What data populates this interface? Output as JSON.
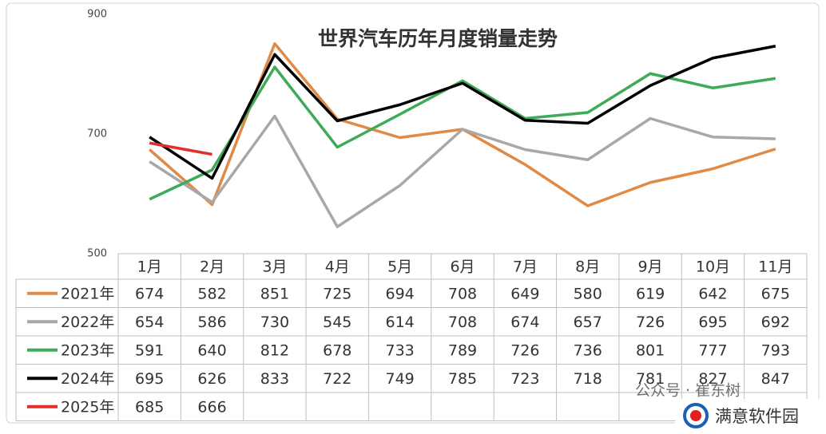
{
  "chart_data": {
    "type": "line",
    "title": "世界汽车历年月度销量走势",
    "categories": [
      "1月",
      "2月",
      "3月",
      "4月",
      "5月",
      "6月",
      "7月",
      "8月",
      "9月",
      "10月",
      "11月"
    ],
    "series": [
      {
        "name": "2021年",
        "color": "#e08a45",
        "values": [
          674,
          582,
          851,
          725,
          694,
          708,
          649,
          580,
          619,
          642,
          675
        ]
      },
      {
        "name": "2022年",
        "color": "#a8a8a8",
        "values": [
          654,
          586,
          730,
          545,
          614,
          708,
          674,
          657,
          726,
          695,
          692
        ]
      },
      {
        "name": "2023年",
        "color": "#3dab57",
        "values": [
          591,
          640,
          812,
          678,
          733,
          789,
          726,
          736,
          801,
          777,
          793
        ]
      },
      {
        "name": "2024年",
        "color": "#000000",
        "values": [
          695,
          626,
          833,
          722,
          749,
          785,
          723,
          718,
          781,
          827,
          847
        ]
      },
      {
        "name": "2025年",
        "color": "#e0302b",
        "values": [
          685,
          666,
          null,
          null,
          null,
          null,
          null,
          null,
          null,
          null,
          null
        ]
      }
    ],
    "ylim": [
      500,
      900
    ],
    "yticks": [
      500,
      700,
      900
    ],
    "watermark": [
      "公众号 · 崔东树",
      "满意软件园"
    ]
  }
}
